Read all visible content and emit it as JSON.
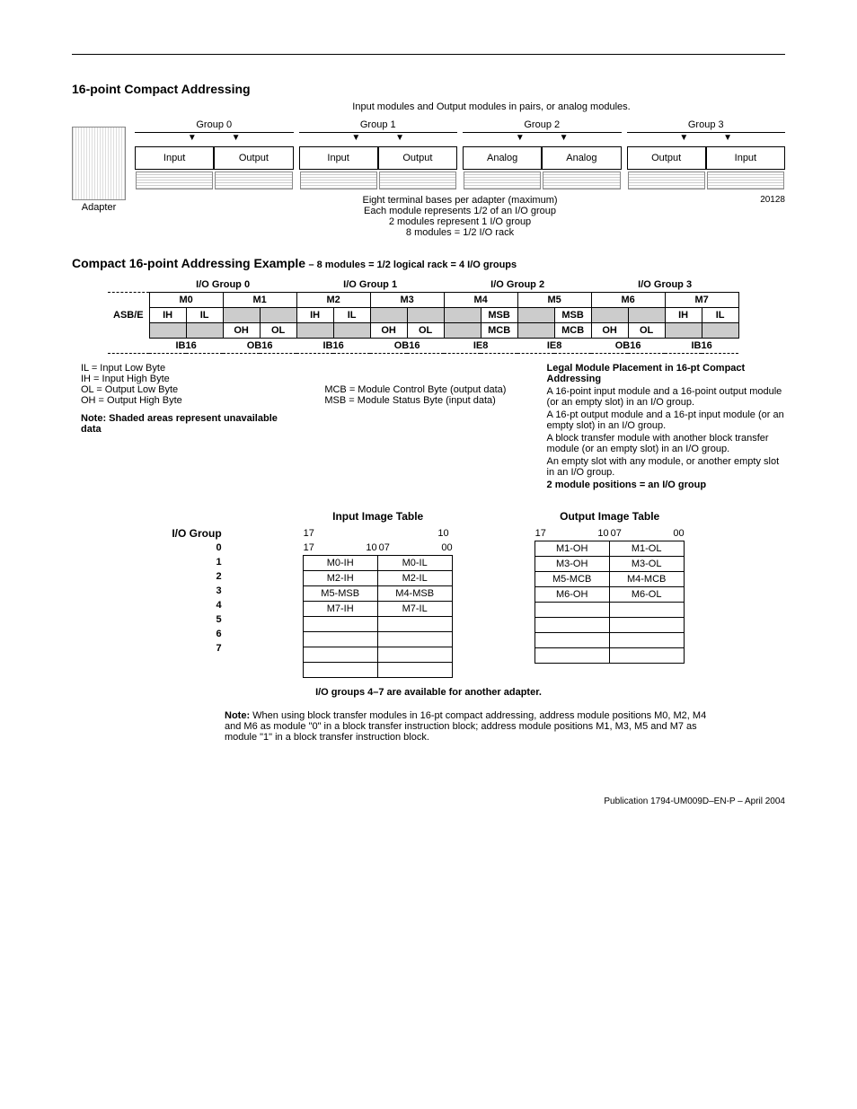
{
  "titles": {
    "sectionA": "16-point Compact Addressing",
    "sectionA_sub": "Input modules and Output modules in pairs, or analog modules.",
    "sectionB": "Compact 16-point Addressing Example",
    "sectionB_sub": "– 8 modules = 1/2 logical rack = 4 I/O groups",
    "imgTblInput": "Input Image Table",
    "imgTblOutput": "Output Image Table",
    "ioGroupHdr": "I/O Group",
    "availLine": "I/O groups 4–7 are available for another adapter."
  },
  "rack": {
    "groups": [
      "Group 0",
      "Group 1",
      "Group 2",
      "Group 3"
    ],
    "slots": [
      "Input",
      "Output",
      "Input",
      "Output",
      "Analog",
      "Analog",
      "Output",
      "Input"
    ],
    "adapter": "Adapter",
    "captions": [
      "Eight terminal bases per adapter (maximum)",
      "Each module represents 1/2 of an I/O group",
      "2 modules represent 1 I/O group",
      "8 modules = 1/2 I/O rack"
    ],
    "figno": "20128"
  },
  "addr": {
    "groupHdrs": [
      "I/O Group 0",
      "I/O Group 1",
      "I/O Group 2",
      "I/O Group 3"
    ],
    "mods": [
      "M0",
      "M1",
      "M2",
      "M3",
      "M4",
      "M5",
      "M6",
      "M7"
    ],
    "asbe": "ASB/E",
    "row1": [
      "IH",
      "IL",
      "",
      "",
      "IH",
      "IL",
      "",
      "",
      "",
      "MSB",
      "",
      "MSB",
      "",
      "",
      "IH",
      "IL"
    ],
    "row2": [
      "",
      "",
      "OH",
      "OL",
      "",
      "",
      "OH",
      "OL",
      "",
      "MCB",
      "",
      "MCB",
      "OH",
      "OL",
      "",
      ""
    ],
    "bottom": [
      "IB16",
      "OB16",
      "IB16",
      "OB16",
      "IE8",
      "IE8",
      "OB16",
      "IB16"
    ]
  },
  "legend": {
    "il": "IL = Input Low Byte",
    "ih": "IH = Input High Byte",
    "ol": "OL = Output Low Byte",
    "oh": "OH = Output High Byte",
    "mcb": "MCB = Module Control Byte (output data)",
    "msb": "MSB = Module Status Byte (input data)",
    "shade": "Note: Shaded areas represent unavailable data"
  },
  "legal": {
    "title": "Legal Module Placement in 16-pt Compact Addressing",
    "p1": "A 16-point input module and a 16-point output module (or an empty slot) in an I/O group.",
    "p2": "A 16-pt output module and a 16-pt input module (or an empty slot) in an I/O group.",
    "p3": "A block transfer module with another block transfer module (or an empty slot) in an I/O group.",
    "p4": "An empty slot with any module, or another empty slot in an I/O group.",
    "p5": "2 module positions =  an I/O group"
  },
  "imgInput": {
    "colHdr": [
      "17",
      "10",
      "07",
      "00"
    ],
    "rows": [
      [
        "M0-IH",
        "M0-IL"
      ],
      [
        "M2-IH",
        "M2-IL"
      ],
      [
        "M5-MSB",
        "M4-MSB"
      ],
      [
        "M7-IH",
        "M7-IL"
      ],
      [
        "",
        ""
      ],
      [
        "",
        ""
      ],
      [
        "",
        ""
      ],
      [
        "",
        ""
      ]
    ]
  },
  "imgOutput": {
    "colHdr": [
      "17",
      "10",
      "07",
      "00"
    ],
    "rows": [
      [
        "M1-OH",
        "M1-OL"
      ],
      [
        "M3-OH",
        "M3-OL"
      ],
      [
        "M5-MCB",
        "M4-MCB"
      ],
      [
        "M6-OH",
        "M6-OL"
      ],
      [
        "",
        ""
      ],
      [
        "",
        ""
      ],
      [
        "",
        ""
      ],
      [
        "",
        ""
      ]
    ]
  },
  "ioGroupNums": [
    "0",
    "1",
    "2",
    "3",
    "4",
    "5",
    "6",
    "7"
  ],
  "note2": {
    "lead": "Note:",
    "body": " When using block transfer modules in 16-pt compact addressing, address module  positions M0, M2, M4 and M6 as module \"0\" in a block transfer instruction block; address module positions M1, M3, M5 and M7 as module \"1\" in a block transfer instruction block."
  },
  "pub": "Publication 1794-UM009D–EN-P – April 2004"
}
